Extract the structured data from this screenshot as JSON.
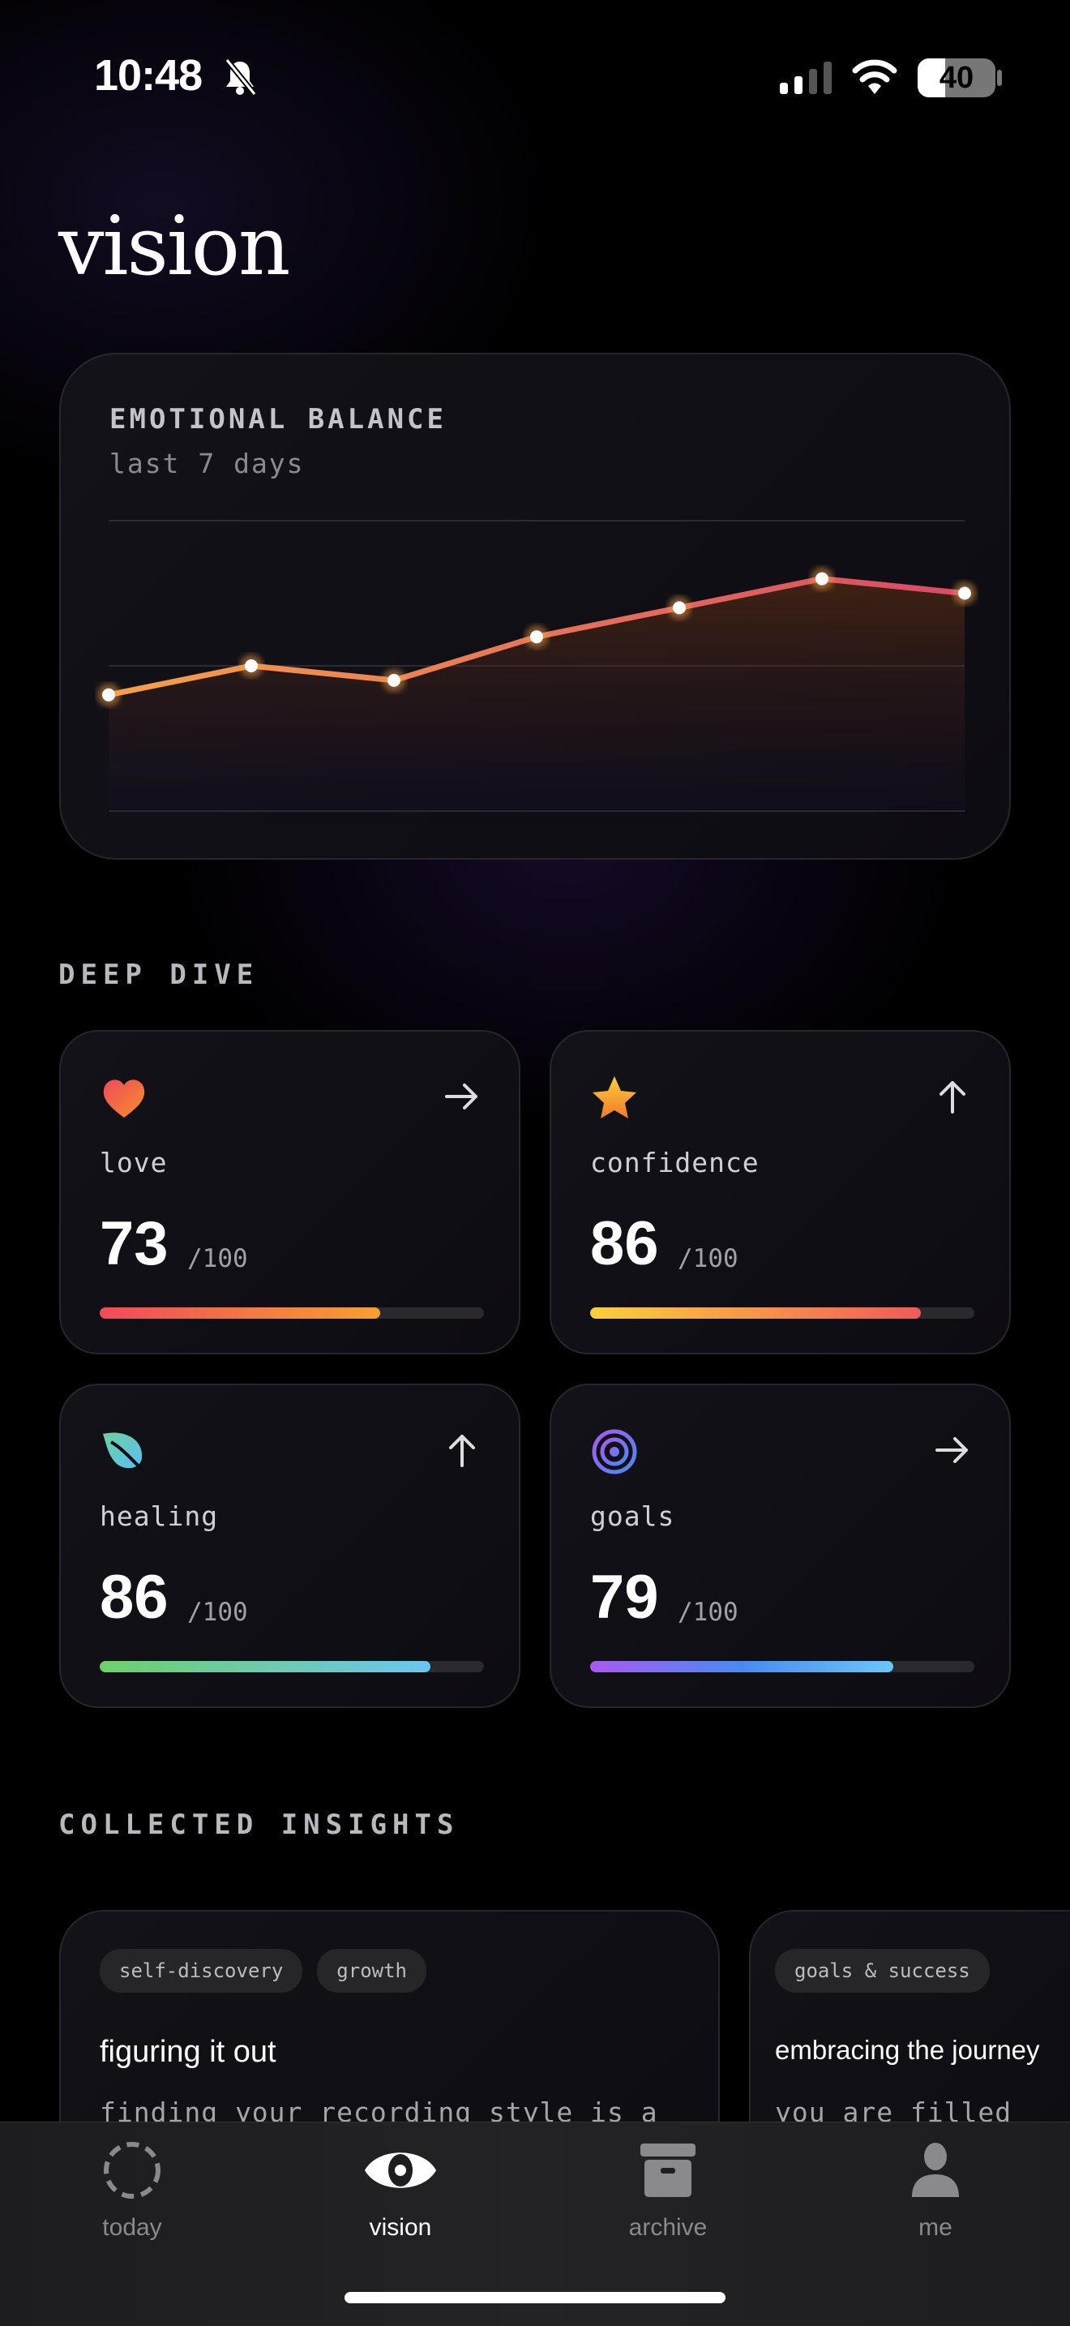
{
  "status_bar": {
    "time": "10:48",
    "battery": "40",
    "icons": [
      "bell-slash-icon",
      "cellular-signal-icon",
      "wifi-icon",
      "battery-icon"
    ]
  },
  "page_title": "vision",
  "emotional_balance": {
    "title": "EMOTIONAL BALANCE",
    "subtitle": "last 7 days"
  },
  "chart_data": {
    "type": "area",
    "values": [
      40,
      50,
      45,
      60,
      70,
      80,
      75
    ],
    "ylim": [
      0,
      100
    ],
    "grid": true,
    "line_gradient": [
      "#f5a04a",
      "#d84a66"
    ]
  },
  "deep_dive": {
    "label": "DEEP DIVE",
    "metrics": [
      {
        "label": "love",
        "value": "73",
        "max": "/100",
        "progress": 73,
        "icon": "heart-icon",
        "trend": "arrow-right-icon",
        "colors": [
          "#f04a5a",
          "#f5a030"
        ]
      },
      {
        "label": "confidence",
        "value": "86",
        "max": "/100",
        "progress": 86,
        "icon": "star-icon",
        "trend": "arrow-up-icon",
        "colors": [
          "#fbd03a",
          "#f05a5a"
        ]
      },
      {
        "label": "healing",
        "value": "86",
        "max": "/100",
        "progress": 86,
        "icon": "leaf-icon",
        "trend": "arrow-up-icon",
        "colors": [
          "#6ed06a",
          "#6ac6f0"
        ]
      },
      {
        "label": "goals",
        "value": "79",
        "max": "/100",
        "progress": 79,
        "icon": "target-icon",
        "trend": "arrow-right-icon",
        "colors": [
          "#a85af0",
          "#4a8af0",
          "#6ac6f8"
        ]
      }
    ]
  },
  "insights": {
    "label": "COLLECTED INSIGHTS",
    "cards": [
      {
        "tags": [
          "self-discovery",
          "growth"
        ],
        "title": "figuring it out",
        "body": "finding your recording style is a journey, not just a destination."
      },
      {
        "tags": [
          "goals & success"
        ],
        "title": "embracing the journey",
        "body": "you are filled with the drive to pursue a career"
      }
    ]
  },
  "tab_bar": {
    "items": [
      {
        "label": "today",
        "icon": "dashed-circle-icon"
      },
      {
        "label": "vision",
        "icon": "eye-icon",
        "active": true
      },
      {
        "label": "archive",
        "icon": "archive-box-icon"
      },
      {
        "label": "me",
        "icon": "person-icon"
      }
    ]
  }
}
